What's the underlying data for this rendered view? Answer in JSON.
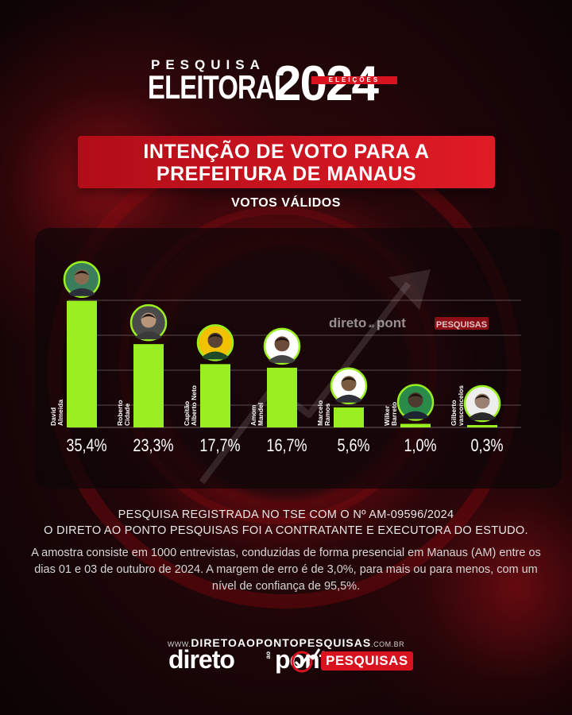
{
  "header": {
    "pesquisa": "PESQUISA",
    "eleitoral": "ELEITORAL",
    "year": "2024",
    "eleicoes": "ELEIÇÕES"
  },
  "title": {
    "line1": "INTENÇÃO DE VOTO PARA A",
    "line2": "PREFEITURA DE MANAUS"
  },
  "subtitle": "VOTOS VÁLIDOS",
  "watermark": {
    "word": "direto",
    "ao": "ao",
    "pont": "pont",
    "tag": "PESQUISAS"
  },
  "footer": {
    "registro": "PESQUISA REGISTRADA NO TSE COM O Nº AM-09596/2024",
    "contratante": "O DIRETO AO PONTO PESQUISAS FOI A CONTRATANTE E EXECUTORA DO ESTUDO.",
    "amostra": "A amostra consiste em 1000 entrevistas, conduzidas de forma presencial em Manaus (AM) entre os dias 01 e 03 de outubro de 2024. A margem de erro é de 3,0%, para mais ou para menos, com um nível de confiança de 95,5%.",
    "url_prefix": "WWW.",
    "url_main": "DIRETOAOPONTOPESQUISAS",
    "url_suffix": ".COM.BR"
  },
  "logo": {
    "word": "direto",
    "ao": "ao",
    "pont": "pont",
    "tag": "PESQUISAS"
  },
  "colors": {
    "bar": "#99ef1f",
    "accent_red": "#d8121f"
  },
  "chart_data": {
    "type": "bar",
    "categories": [
      "David Almeida",
      "Roberto Cidade",
      "Capitão Alberto Neto",
      "Amom Mandel",
      "Marcelo Ramos",
      "Wilker Barreto",
      "Gilberto vasconcelos"
    ],
    "name_lines": [
      [
        "David",
        "Almeida"
      ],
      [
        "Roberto",
        "Cidade"
      ],
      [
        "Capitão",
        "Alberto Neto"
      ],
      [
        "Amom",
        "Mandel"
      ],
      [
        "Marcelo",
        "Ramos"
      ],
      [
        "Wilker",
        "Barreto"
      ],
      [
        "Gilberto",
        "vasconcelos"
      ]
    ],
    "values": [
      35.4,
      23.3,
      17.7,
      16.7,
      5.6,
      1.0,
      0.3
    ],
    "labels": [
      "35,4%",
      "23,3%",
      "17,7%",
      "16,7%",
      "5,6%",
      "1,0%",
      "0,3%"
    ],
    "ylim": [
      0,
      40
    ],
    "grid": true
  }
}
